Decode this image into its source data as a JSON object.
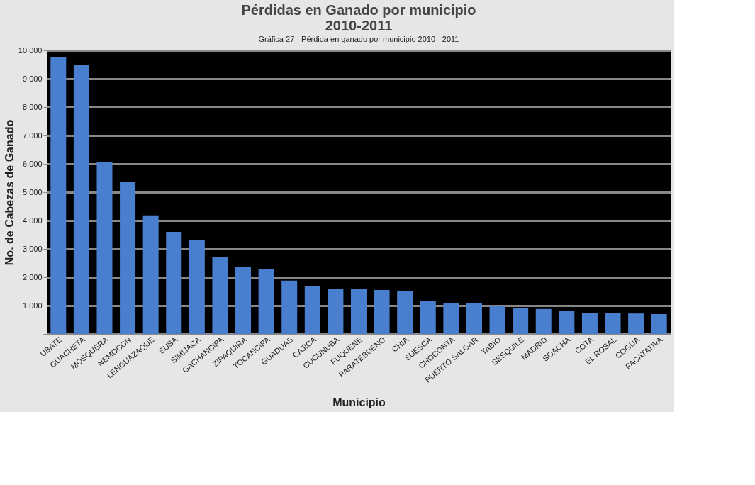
{
  "chart_data": {
    "type": "bar",
    "title": "Pérdidas en Ganado por municipio\n2010-2011",
    "xlabel": "Municipio",
    "ylabel": "No. de Cabezas de Ganado",
    "annotations": [
      "Gráfica 27 - Pérdida en ganado por municipio 2010 - 2011"
    ],
    "categories": [
      "UBATE",
      "GUACHETA",
      "MOSQUERA",
      "NEMOCON",
      "LENGUAZAQUE",
      "SUSA",
      "SIMIJACA",
      "GACHANCIPA",
      "ZIPAQUIRA",
      "TOCANCIPA",
      "GUADUAS",
      "CAJICA",
      "CUCUNUBA",
      "FUQUENE",
      "PARATEBUENO",
      "CHIA",
      "SUESCA",
      "CHOCONTA",
      "PUERTO SALGAR",
      "TABIO",
      "SESQUILE",
      "MADRID",
      "SOACHA",
      "COTA",
      "EL ROSAL",
      "COGUA",
      "FACATATIVA"
    ],
    "values": [
      9750,
      9500,
      6050,
      5350,
      4180,
      3600,
      3300,
      2700,
      2350,
      2300,
      1880,
      1700,
      1600,
      1600,
      1550,
      1500,
      1150,
      1100,
      1100,
      1000,
      900,
      880,
      800,
      750,
      750,
      720,
      700
    ],
    "color": "#4a7fd0",
    "ylim": [
      0,
      10000
    ],
    "yticks": [
      {
        "value": 0,
        "label": "-"
      },
      {
        "value": 1000,
        "label": "1.000"
      },
      {
        "value": 2000,
        "label": "2.000"
      },
      {
        "value": 3000,
        "label": "3.000"
      },
      {
        "value": 4000,
        "label": "4.000"
      },
      {
        "value": 5000,
        "label": "5.000"
      },
      {
        "value": 6000,
        "label": "6.000"
      },
      {
        "value": 7000,
        "label": "7.000"
      },
      {
        "value": 8000,
        "label": "8.000"
      },
      {
        "value": 9000,
        "label": "9.000"
      },
      {
        "value": 10000,
        "label": "10.000"
      }
    ],
    "grid": "y"
  }
}
